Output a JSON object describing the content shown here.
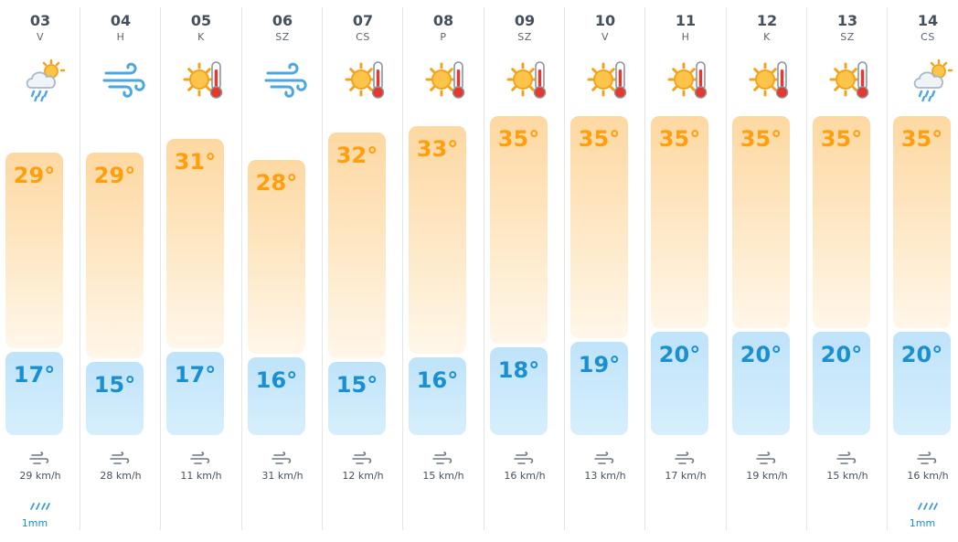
{
  "days": [
    {
      "date": "03",
      "dow": "V",
      "icon": "rain-cloud-sun-icon",
      "high": "29°",
      "low": "17°",
      "high_frac": 0.6,
      "low_frac": 0.55,
      "wind": "29 km/h",
      "rain": "1mm"
    },
    {
      "date": "04",
      "dow": "H",
      "icon": "wind-icon",
      "high": "29°",
      "low": "15°",
      "high_frac": 0.6,
      "low_frac": 0.4,
      "wind": "28 km/h",
      "rain": ""
    },
    {
      "date": "05",
      "dow": "K",
      "icon": "sun-thermometer-icon",
      "high": "31°",
      "low": "17°",
      "high_frac": 0.75,
      "low_frac": 0.55,
      "wind": "11 km/h",
      "rain": ""
    },
    {
      "date": "06",
      "dow": "SZ",
      "icon": "wind-icon",
      "high": "28°",
      "low": "16°",
      "high_frac": 0.52,
      "low_frac": 0.47,
      "wind": "31 km/h",
      "rain": ""
    },
    {
      "date": "07",
      "dow": "CS",
      "icon": "sun-thermometer-icon",
      "high": "32°",
      "low": "15°",
      "high_frac": 0.82,
      "low_frac": 0.4,
      "wind": "12 km/h",
      "rain": ""
    },
    {
      "date": "08",
      "dow": "P",
      "icon": "sun-thermometer-icon",
      "high": "33°",
      "low": "16°",
      "high_frac": 0.89,
      "low_frac": 0.47,
      "wind": "15 km/h",
      "rain": ""
    },
    {
      "date": "09",
      "dow": "SZ",
      "icon": "sun-thermometer-icon",
      "high": "35°",
      "low": "18°",
      "high_frac": 1.0,
      "low_frac": 0.62,
      "wind": "16 km/h",
      "rain": ""
    },
    {
      "date": "10",
      "dow": "V",
      "icon": "sun-thermometer-icon",
      "high": "35°",
      "low": "19°",
      "high_frac": 1.0,
      "low_frac": 0.7,
      "wind": "13 km/h",
      "rain": ""
    },
    {
      "date": "11",
      "dow": "H",
      "icon": "sun-thermometer-icon",
      "high": "35°",
      "low": "20°",
      "high_frac": 1.0,
      "low_frac": 0.85,
      "wind": "17 km/h",
      "rain": ""
    },
    {
      "date": "12",
      "dow": "K",
      "icon": "sun-thermometer-icon",
      "high": "35°",
      "low": "20°",
      "high_frac": 1.0,
      "low_frac": 0.85,
      "wind": "19 km/h",
      "rain": ""
    },
    {
      "date": "13",
      "dow": "SZ",
      "icon": "sun-thermometer-icon",
      "high": "35°",
      "low": "20°",
      "high_frac": 1.0,
      "low_frac": 0.85,
      "wind": "15 km/h",
      "rain": ""
    },
    {
      "date": "14",
      "dow": "CS",
      "icon": "rain-cloud-sun-icon",
      "high": "35°",
      "low": "20°",
      "high_frac": 1.0,
      "low_frac": 0.85,
      "wind": "16 km/h",
      "rain": "1mm"
    }
  ],
  "colors": {
    "high": "#ff9f0e",
    "low": "#1a8fd1",
    "sun": "#f6a623",
    "rain": "#1b8ad0"
  }
}
